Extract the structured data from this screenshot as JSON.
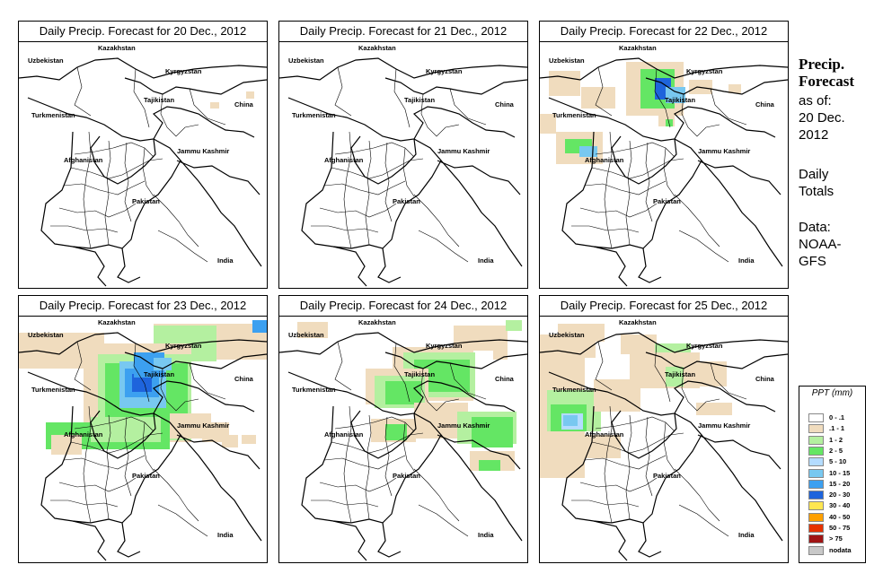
{
  "panels": [
    {
      "title": "Daily Precip. Forecast for  20 Dec., 2012",
      "day": "20 Dec., 2012",
      "precip_scene": "day20"
    },
    {
      "title": "Daily Precip. Forecast for  21 Dec., 2012",
      "day": "21 Dec., 2012",
      "precip_scene": "day21"
    },
    {
      "title": "Daily Precip. Forecast for  22 Dec., 2012",
      "day": "22 Dec., 2012",
      "precip_scene": "day22"
    },
    {
      "title": "Daily Precip. Forecast for  23 Dec., 2012",
      "day": "23 Dec., 2012",
      "precip_scene": "day23"
    },
    {
      "title": "Daily Precip. Forecast for  24 Dec., 2012",
      "day": "24 Dec., 2012",
      "precip_scene": "day24"
    },
    {
      "title": "Daily Precip. Forecast for  25 Dec., 2012",
      "day": "25 Dec., 2012",
      "precip_scene": "day25"
    }
  ],
  "map_labels": [
    "Kazakhstan",
    "Uzbekistan",
    "Kyrgyzstan",
    "Tajikistan",
    "China",
    "Turkmenistan",
    "Jammu Kashmir",
    "Afghanistan",
    "Pakistan",
    "India"
  ],
  "sidebar": {
    "title_line1": "Precip.",
    "title_line2": "Forecast",
    "asof_line1": "as of:",
    "asof_line2": "20 Dec.",
    "asof_line3": "2012",
    "daily_line1": "Daily",
    "daily_line2": "Totals",
    "data_line1": "Data:",
    "data_line2": "NOAA-",
    "data_line3": "GFS"
  },
  "legend": {
    "title": "PPT (mm)",
    "items": [
      {
        "label": "0 - .1",
        "color": "#ffffff"
      },
      {
        "label": ".1 - 1",
        "color": "#f0dcbe"
      },
      {
        "label": "1 - 2",
        "color": "#b4f0a0"
      },
      {
        "label": "2 - 5",
        "color": "#64e664"
      },
      {
        "label": "5 - 10",
        "color": "#b4dcff"
      },
      {
        "label": "10 - 15",
        "color": "#78c8f0"
      },
      {
        "label": "15 - 20",
        "color": "#3ca0f0"
      },
      {
        "label": "20 - 30",
        "color": "#1e64dc"
      },
      {
        "label": "30 - 40",
        "color": "#ffe650"
      },
      {
        "label": "40 - 50",
        "color": "#ffa000"
      },
      {
        "label": "50 - 75",
        "color": "#e63200"
      },
      {
        "label": "> 75",
        "color": "#a01414"
      },
      {
        "label": "nodata",
        "color": "#c8c8c8"
      }
    ]
  }
}
